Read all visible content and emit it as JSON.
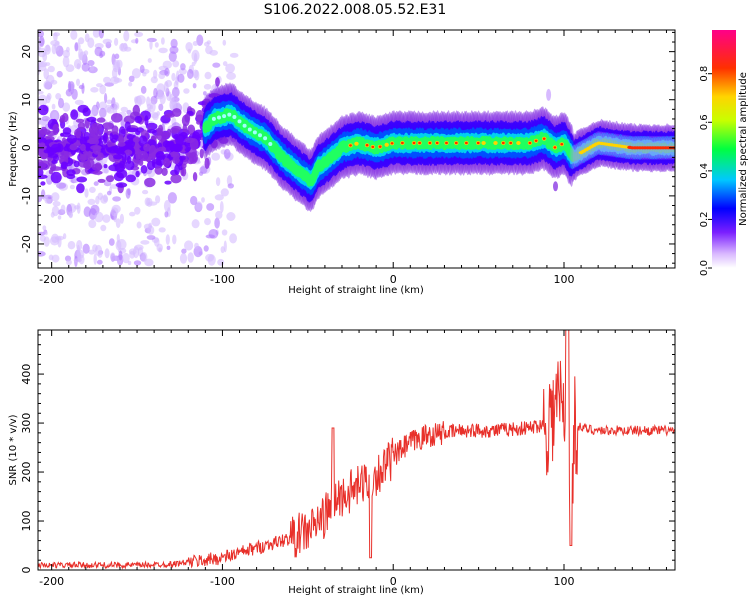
{
  "title": "S106.2022.008.05.52.E31",
  "colors": {
    "snr_line": "#e8302a",
    "axis": "#000000",
    "spectrogram_low": "#8a2be2",
    "spectrogram_high": "#ff0000"
  },
  "chart_data": [
    {
      "type": "heatmap",
      "name": "spectrogram",
      "title": "",
      "xlabel": "Height of straight line (km)",
      "ylabel": "Frequency (Hz)",
      "xlim": [
        -208,
        165
      ],
      "ylim": [
        -25,
        24.5
      ],
      "xticks": [
        -200,
        -100,
        0,
        100
      ],
      "yticks": [
        -20,
        -10,
        0,
        10,
        20
      ],
      "colormap": "rainbow",
      "colorbar": {
        "label": "Normalized spectral amplitude",
        "lim": [
          0,
          0.98
        ],
        "ticks": [
          "0.0",
          "0.2",
          "0.4",
          "0.6",
          "0.8"
        ]
      },
      "ridge": {
        "description_x": [
          -205,
          -180,
          -150,
          -120,
          -105,
          -95,
          -85,
          -75,
          -65,
          -55,
          -48,
          -44,
          -40,
          -30,
          -20,
          -10,
          0,
          20,
          40,
          60,
          80,
          88,
          95,
          100,
          105,
          120,
          140,
          165
        ],
        "frequency_y": [
          0,
          0,
          0,
          0,
          6,
          7,
          4,
          2,
          -2,
          -5,
          -7,
          -4,
          -3,
          0,
          1,
          0,
          1,
          1,
          1,
          1,
          1,
          2,
          0,
          1,
          -2,
          1,
          0,
          0
        ]
      }
    },
    {
      "type": "line",
      "name": "snr",
      "title": "",
      "xlabel": "Height of straight line (km)",
      "ylabel": "SNR (10 * v/v)",
      "xlim": [
        -208,
        165
      ],
      "ylim": [
        0,
        490
      ],
      "xticks": [
        -200,
        -100,
        0,
        100
      ],
      "yticks": [
        0,
        100,
        200,
        300,
        400
      ],
      "series": [
        {
          "x": [
            -208,
            -190,
            -170,
            -150,
            -130,
            -115,
            -100,
            -90,
            -80,
            -70,
            -60,
            -50,
            -40,
            -35,
            -30,
            -25,
            -20,
            -15,
            -10,
            -5,
            0,
            10,
            20,
            30,
            40,
            50,
            60,
            70,
            80,
            90,
            95,
            98,
            100,
            102,
            104,
            106,
            110,
            120,
            130,
            140,
            150,
            165
          ],
          "y": [
            10,
            10,
            10,
            10,
            12,
            18,
            25,
            35,
            45,
            55,
            65,
            80,
            110,
            140,
            150,
            160,
            170,
            185,
            195,
            210,
            230,
            260,
            275,
            280,
            285,
            285,
            285,
            288,
            290,
            300,
            330,
            360,
            290,
            400,
            80,
            300,
            290,
            285,
            285,
            285,
            285,
            285
          ]
        }
      ]
    }
  ]
}
